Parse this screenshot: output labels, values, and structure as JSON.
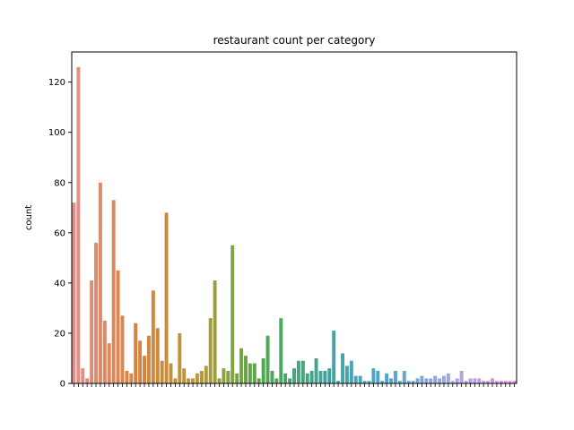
{
  "chart_data": {
    "type": "bar",
    "title": "restaurant count per category",
    "xlabel": "",
    "ylabel": "count",
    "ylim": [
      0,
      132
    ],
    "yticks": [
      0,
      20,
      40,
      60,
      80,
      100,
      120
    ],
    "grid": false,
    "category_labels_rotated": true,
    "values": [
      72,
      126,
      6,
      2,
      41,
      56,
      80,
      25,
      16,
      73,
      45,
      27,
      5,
      4,
      24,
      17,
      11,
      19,
      37,
      22,
      9,
      68,
      8,
      2,
      20,
      6,
      2,
      2,
      4,
      5,
      7,
      26,
      41,
      2,
      6,
      5,
      55,
      4,
      14,
      11,
      8,
      8,
      2,
      10,
      19,
      5,
      2,
      26,
      4,
      2,
      6,
      9,
      9,
      4,
      5,
      10,
      5,
      5,
      6,
      21,
      1,
      12,
      7,
      9,
      3,
      3,
      1,
      1,
      6,
      5,
      1,
      4,
      2,
      5,
      1,
      5,
      1,
      1,
      2,
      3,
      2,
      2,
      3,
      2,
      3,
      4,
      1,
      2,
      5,
      1,
      2,
      2,
      2,
      1,
      1,
      2,
      1,
      1,
      1,
      1,
      1
    ],
    "palette_stops": [
      "#e48f8a",
      "#d8823d",
      "#b59a3a",
      "#4fa74e",
      "#43a39b",
      "#4fa5cf",
      "#a9a6e6",
      "#e18cd6"
    ]
  }
}
